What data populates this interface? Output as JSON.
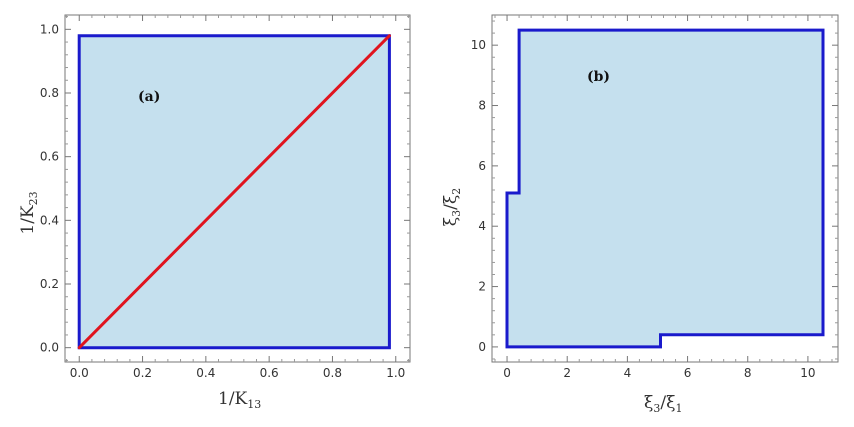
{
  "chart_data": [
    {
      "type": "area",
      "panel_label": "(a)",
      "xlabel": {
        "main": "1/K",
        "sub": "13"
      },
      "ylabel": {
        "main": "1/K",
        "sub": "23"
      },
      "xlim": [
        -0.045,
        1.045
      ],
      "ylim": [
        -0.045,
        1.045
      ],
      "xticks": [
        0.0,
        0.2,
        0.4,
        0.6,
        0.8,
        1.0
      ],
      "yticks": [
        0.0,
        0.2,
        0.4,
        0.6,
        0.8,
        1.0
      ],
      "xtick_labels": [
        "0.0",
        "0.2",
        "0.4",
        "0.6",
        "0.8",
        "1.0"
      ],
      "ytick_labels": [
        "0.0",
        "0.2",
        "0.4",
        "0.6",
        "0.8",
        "1.0"
      ],
      "region": [
        [
          0,
          0
        ],
        [
          0.98,
          0
        ],
        [
          0.98,
          0.98
        ],
        [
          0,
          0.98
        ]
      ],
      "line": [
        [
          0,
          0
        ],
        [
          0.98,
          0.98
        ]
      ],
      "fill_color": "#c5e0ee",
      "edge_color": "#1a1acc",
      "line_color": "#e0141e"
    },
    {
      "type": "area",
      "panel_label": "(b)",
      "xlabel": {
        "main": "ξ",
        "sub1": "3",
        "sep": "/ξ",
        "sub2": "1"
      },
      "ylabel": {
        "main": "ξ",
        "sub1": "3",
        "sep": "/ξ",
        "sub2": "2"
      },
      "xlim": [
        -0.5,
        11
      ],
      "ylim": [
        -0.5,
        11
      ],
      "xticks": [
        0,
        2,
        4,
        6,
        8,
        10
      ],
      "yticks": [
        0,
        2,
        4,
        6,
        8,
        10
      ],
      "xtick_labels": [
        "0",
        "2",
        "4",
        "6",
        "8",
        "10"
      ],
      "ytick_labels": [
        "0",
        "2",
        "4",
        "6",
        "8",
        "10"
      ],
      "region": [
        [
          0,
          0
        ],
        [
          5.1,
          0
        ],
        [
          5.1,
          0.4
        ],
        [
          10.5,
          0.4
        ],
        [
          10.5,
          10.5
        ],
        [
          0.4,
          10.5
        ],
        [
          0.4,
          5.1
        ],
        [
          0,
          5.1
        ]
      ],
      "fill_color": "#c5e0ee",
      "edge_color": "#1a1acc"
    }
  ]
}
